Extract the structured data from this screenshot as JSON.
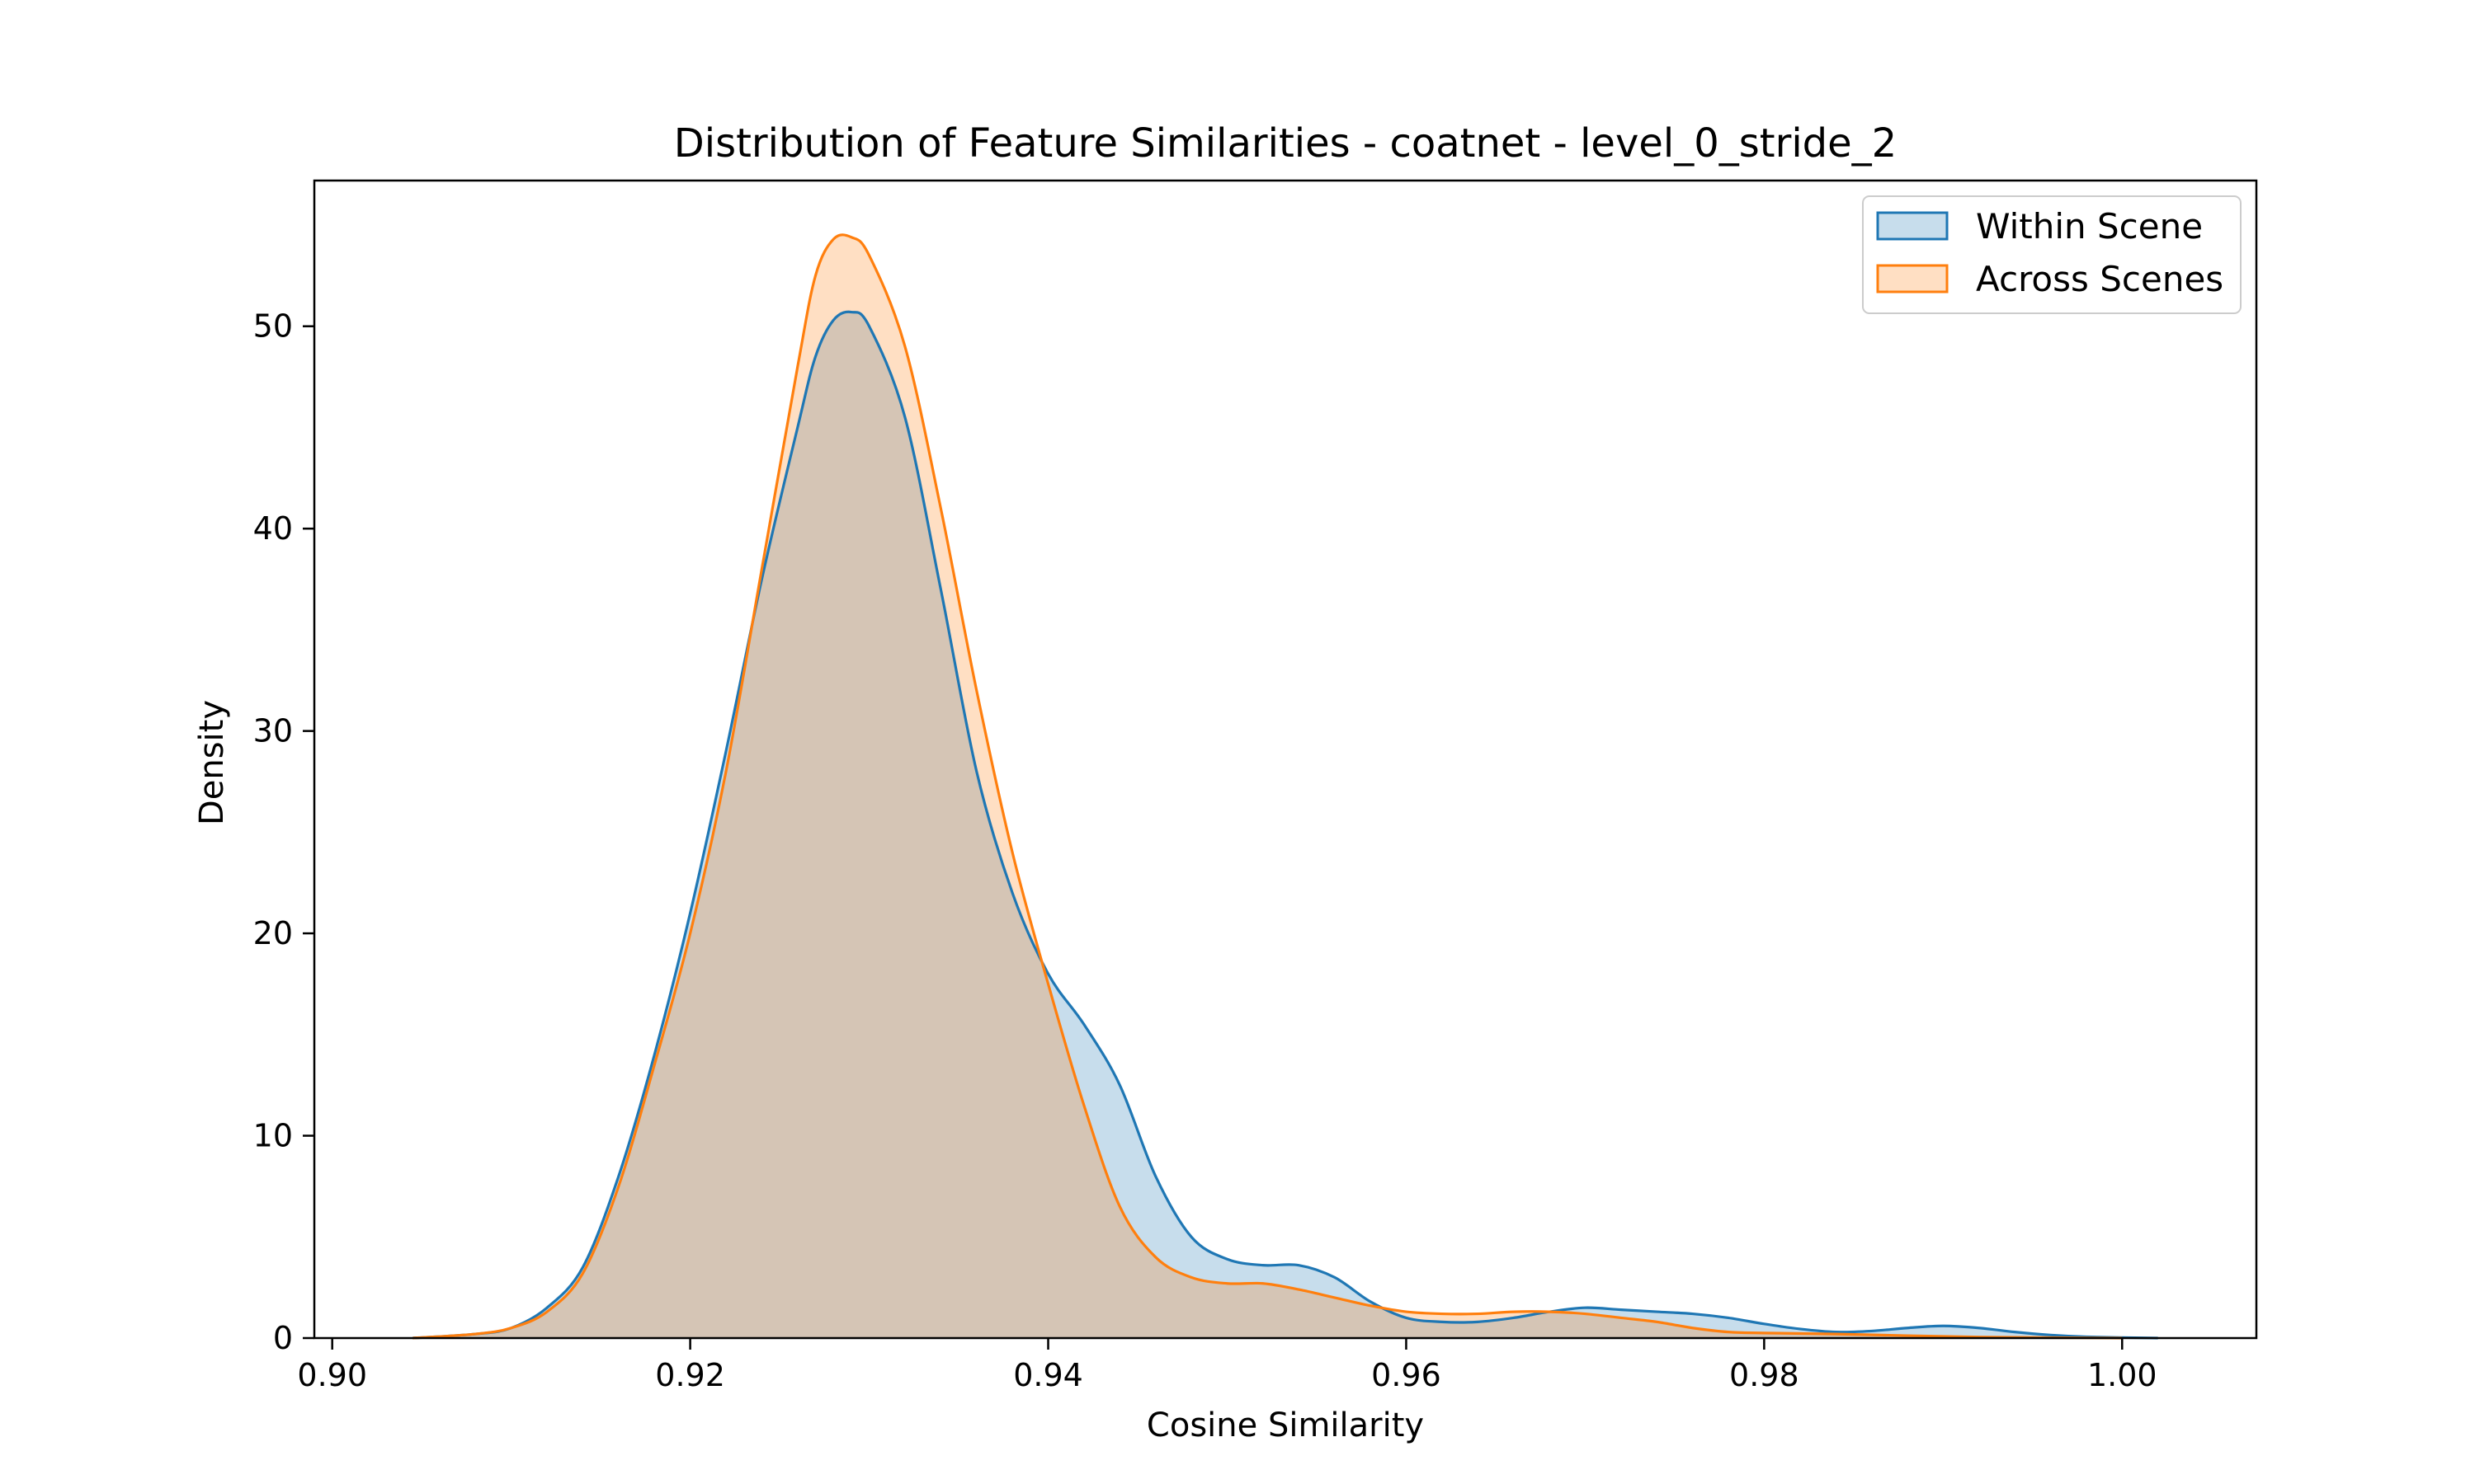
{
  "chart_data": {
    "type": "area",
    "title": "Distribution of Feature Similarities - coatnet - level_0_stride_2",
    "xlabel": "Cosine Similarity",
    "ylabel": "Density",
    "xlim": [
      0.899,
      1.0075
    ],
    "ylim": [
      0,
      57.2
    ],
    "xticks": [
      0.9,
      0.92,
      0.94,
      0.96,
      0.98,
      1.0
    ],
    "xtick_labels": [
      "0.90",
      "0.92",
      "0.94",
      "0.96",
      "0.98",
      "1.00"
    ],
    "yticks": [
      0,
      10,
      20,
      30,
      40,
      50
    ],
    "ytick_labels": [
      "0",
      "10",
      "20",
      "30",
      "40",
      "50"
    ],
    "grid": false,
    "legend_position": "top-right",
    "series": [
      {
        "name": "Within Scene",
        "color": "#1f77b4",
        "fill_opacity": 0.25,
        "points": [
          [
            0.9045,
            0.0
          ],
          [
            0.908,
            0.2
          ],
          [
            0.91,
            0.5
          ],
          [
            0.912,
            1.5
          ],
          [
            0.914,
            3.5
          ],
          [
            0.916,
            8.0
          ],
          [
            0.918,
            14.0
          ],
          [
            0.92,
            21.0
          ],
          [
            0.922,
            29.0
          ],
          [
            0.924,
            37.5
          ],
          [
            0.926,
            45.0
          ],
          [
            0.927,
            48.5
          ],
          [
            0.928,
            50.3
          ],
          [
            0.929,
            50.7
          ],
          [
            0.93,
            50.0
          ],
          [
            0.932,
            45.5
          ],
          [
            0.934,
            37.0
          ],
          [
            0.936,
            28.0
          ],
          [
            0.938,
            22.0
          ],
          [
            0.94,
            18.0
          ],
          [
            0.942,
            15.5
          ],
          [
            0.944,
            12.5
          ],
          [
            0.946,
            8.0
          ],
          [
            0.948,
            5.0
          ],
          [
            0.95,
            3.9
          ],
          [
            0.952,
            3.6
          ],
          [
            0.954,
            3.6
          ],
          [
            0.956,
            3.0
          ],
          [
            0.958,
            1.8
          ],
          [
            0.96,
            1.0
          ],
          [
            0.962,
            0.8
          ],
          [
            0.964,
            0.8
          ],
          [
            0.966,
            1.0
          ],
          [
            0.968,
            1.3
          ],
          [
            0.97,
            1.5
          ],
          [
            0.972,
            1.4
          ],
          [
            0.974,
            1.3
          ],
          [
            0.976,
            1.2
          ],
          [
            0.978,
            1.0
          ],
          [
            0.98,
            0.7
          ],
          [
            0.982,
            0.45
          ],
          [
            0.984,
            0.3
          ],
          [
            0.986,
            0.35
          ],
          [
            0.988,
            0.5
          ],
          [
            0.99,
            0.6
          ],
          [
            0.992,
            0.5
          ],
          [
            0.994,
            0.3
          ],
          [
            0.996,
            0.15
          ],
          [
            0.998,
            0.06
          ],
          [
            1.002,
            0.0
          ]
        ]
      },
      {
        "name": "Across Scenes",
        "color": "#ff7f0e",
        "fill_opacity": 0.25,
        "points": [
          [
            0.9045,
            0.0
          ],
          [
            0.908,
            0.2
          ],
          [
            0.91,
            0.5
          ],
          [
            0.912,
            1.3
          ],
          [
            0.914,
            3.2
          ],
          [
            0.916,
            7.5
          ],
          [
            0.918,
            13.5
          ],
          [
            0.92,
            20.0
          ],
          [
            0.922,
            28.0
          ],
          [
            0.924,
            38.0
          ],
          [
            0.926,
            48.0
          ],
          [
            0.927,
            52.5
          ],
          [
            0.928,
            54.3
          ],
          [
            0.929,
            54.4
          ],
          [
            0.93,
            53.5
          ],
          [
            0.932,
            49.0
          ],
          [
            0.934,
            41.0
          ],
          [
            0.936,
            32.0
          ],
          [
            0.938,
            24.0
          ],
          [
            0.94,
            17.5
          ],
          [
            0.942,
            11.5
          ],
          [
            0.944,
            6.5
          ],
          [
            0.946,
            4.0
          ],
          [
            0.948,
            3.0
          ],
          [
            0.95,
            2.7
          ],
          [
            0.952,
            2.7
          ],
          [
            0.954,
            2.4
          ],
          [
            0.956,
            2.0
          ],
          [
            0.958,
            1.6
          ],
          [
            0.96,
            1.3
          ],
          [
            0.962,
            1.2
          ],
          [
            0.964,
            1.2
          ],
          [
            0.966,
            1.3
          ],
          [
            0.968,
            1.3
          ],
          [
            0.97,
            1.2
          ],
          [
            0.972,
            1.0
          ],
          [
            0.974,
            0.8
          ],
          [
            0.976,
            0.5
          ],
          [
            0.978,
            0.3
          ],
          [
            0.98,
            0.25
          ],
          [
            0.984,
            0.2
          ],
          [
            0.988,
            0.12
          ],
          [
            0.992,
            0.05
          ],
          [
            0.996,
            0.02
          ],
          [
            1.0,
            0.0
          ]
        ]
      }
    ]
  }
}
